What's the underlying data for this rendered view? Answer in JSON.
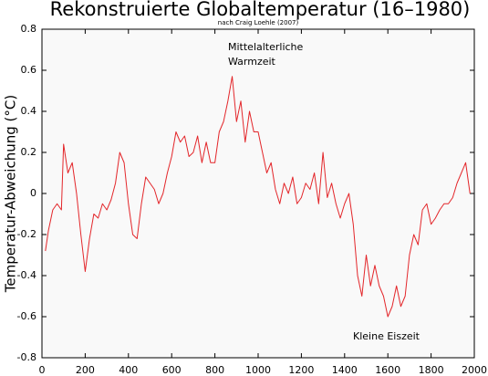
{
  "chart_data": {
    "type": "line",
    "title": "Rekonstruierte Globaltemperatur (16–1980)",
    "subtitle": "nach Craig Loehle (2007)",
    "y_label": "Temperatur-Abweichung (°C)",
    "annotations": [
      {
        "lines": [
          "Mittelalterliche",
          "Warmzeit"
        ]
      },
      {
        "lines": [
          "Kleine Eiszeit"
        ]
      }
    ],
    "color": "#e3262a",
    "xlim": [
      0,
      2000
    ],
    "xticks": [
      0,
      200,
      400,
      600,
      800,
      1000,
      1200,
      1400,
      1600,
      1800,
      2000
    ],
    "ylim": [
      -0.8,
      0.8
    ],
    "yticks": [
      -0.8,
      -0.6,
      -0.4,
      -0.2,
      0,
      0.2,
      0.4,
      0.6,
      0.8
    ],
    "grid": false,
    "x": [
      16,
      30,
      50,
      70,
      90,
      100,
      120,
      140,
      160,
      180,
      200,
      220,
      240,
      260,
      280,
      300,
      320,
      340,
      360,
      380,
      400,
      420,
      440,
      460,
      480,
      500,
      520,
      540,
      560,
      580,
      600,
      620,
      640,
      660,
      680,
      700,
      720,
      740,
      760,
      780,
      800,
      820,
      840,
      860,
      880,
      900,
      920,
      940,
      960,
      980,
      1000,
      1020,
      1040,
      1060,
      1080,
      1100,
      1120,
      1140,
      1160,
      1180,
      1200,
      1220,
      1240,
      1260,
      1280,
      1300,
      1320,
      1340,
      1360,
      1380,
      1400,
      1420,
      1440,
      1460,
      1480,
      1500,
      1520,
      1540,
      1560,
      1580,
      1600,
      1620,
      1640,
      1660,
      1680,
      1700,
      1720,
      1740,
      1760,
      1780,
      1800,
      1820,
      1840,
      1860,
      1880,
      1900,
      1920,
      1940,
      1960,
      1980
    ],
    "values": [
      -0.28,
      -0.18,
      -0.08,
      -0.05,
      -0.08,
      0.24,
      0.1,
      0.15,
      0,
      -0.2,
      -0.38,
      -0.22,
      -0.1,
      -0.12,
      -0.05,
      -0.08,
      -0.03,
      0.05,
      0.2,
      0.15,
      -0.05,
      -0.2,
      -0.22,
      -0.05,
      0.08,
      0.05,
      0.02,
      -0.05,
      0,
      0.1,
      0.18,
      0.3,
      0.25,
      0.28,
      0.18,
      0.2,
      0.28,
      0.15,
      0.25,
      0.15,
      0.15,
      0.3,
      0.35,
      0.45,
      0.57,
      0.35,
      0.45,
      0.25,
      0.4,
      0.3,
      0.3,
      0.2,
      0.1,
      0.15,
      0.02,
      -0.05,
      0.05,
      0,
      0.08,
      -0.05,
      -0.02,
      0.05,
      0.02,
      0.1,
      -0.05,
      0.2,
      -0.02,
      0.05,
      -0.05,
      -0.12,
      -0.05,
      0,
      -0.15,
      -0.4,
      -0.5,
      -0.3,
      -0.45,
      -0.35,
      -0.45,
      -0.5,
      -0.6,
      -0.55,
      -0.45,
      -0.55,
      -0.5,
      -0.3,
      -0.2,
      -0.25,
      -0.08,
      -0.05,
      -0.15,
      -0.12,
      -0.08,
      -0.05,
      -0.05,
      -0.02,
      0.05,
      0.1,
      0.15,
      0
    ]
  }
}
